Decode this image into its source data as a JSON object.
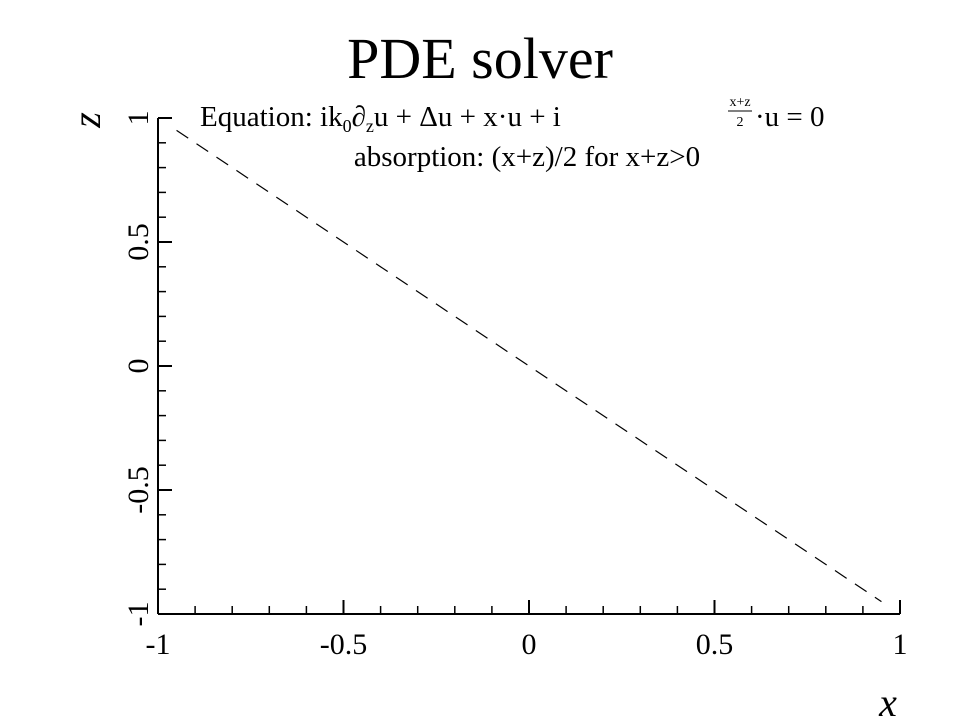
{
  "chart_data": {
    "type": "line",
    "title": "PDE solver",
    "subtitle": {
      "equation_prefix": "Equation: ik",
      "equation_k_sub": "0",
      "equation_partial": "∂",
      "equation_partial_sub": "z",
      "equation_mid": "u + Δu + x·u + i",
      "equation_frac_num": "x+z",
      "equation_frac_den": "2",
      "equation_suffix": "·u = 0",
      "absorption_line": "absorption: (x+z)/2 for x+z>0"
    },
    "xlabel": "x",
    "ylabel": "z",
    "xlim": [
      -1,
      1
    ],
    "ylim": [
      -1,
      1
    ],
    "x_ticks": [
      {
        "value": -1,
        "label": "-1"
      },
      {
        "value": -0.5,
        "label": "-0.5"
      },
      {
        "value": 0,
        "label": "0"
      },
      {
        "value": 0.5,
        "label": "0.5"
      },
      {
        "value": 1,
        "label": "1"
      }
    ],
    "y_ticks": [
      {
        "value": -1,
        "label": "-1"
      },
      {
        "value": -0.5,
        "label": "-0.5"
      },
      {
        "value": 0,
        "label": "0"
      },
      {
        "value": 0.5,
        "label": "0.5"
      },
      {
        "value": 1,
        "label": "1"
      }
    ],
    "minor_step": 0.1,
    "grid": false,
    "series": [
      {
        "style": "dashed",
        "color": "#000000",
        "x": [
          -0.95,
          0.95
        ],
        "y": [
          0.95,
          -0.95
        ]
      }
    ]
  }
}
